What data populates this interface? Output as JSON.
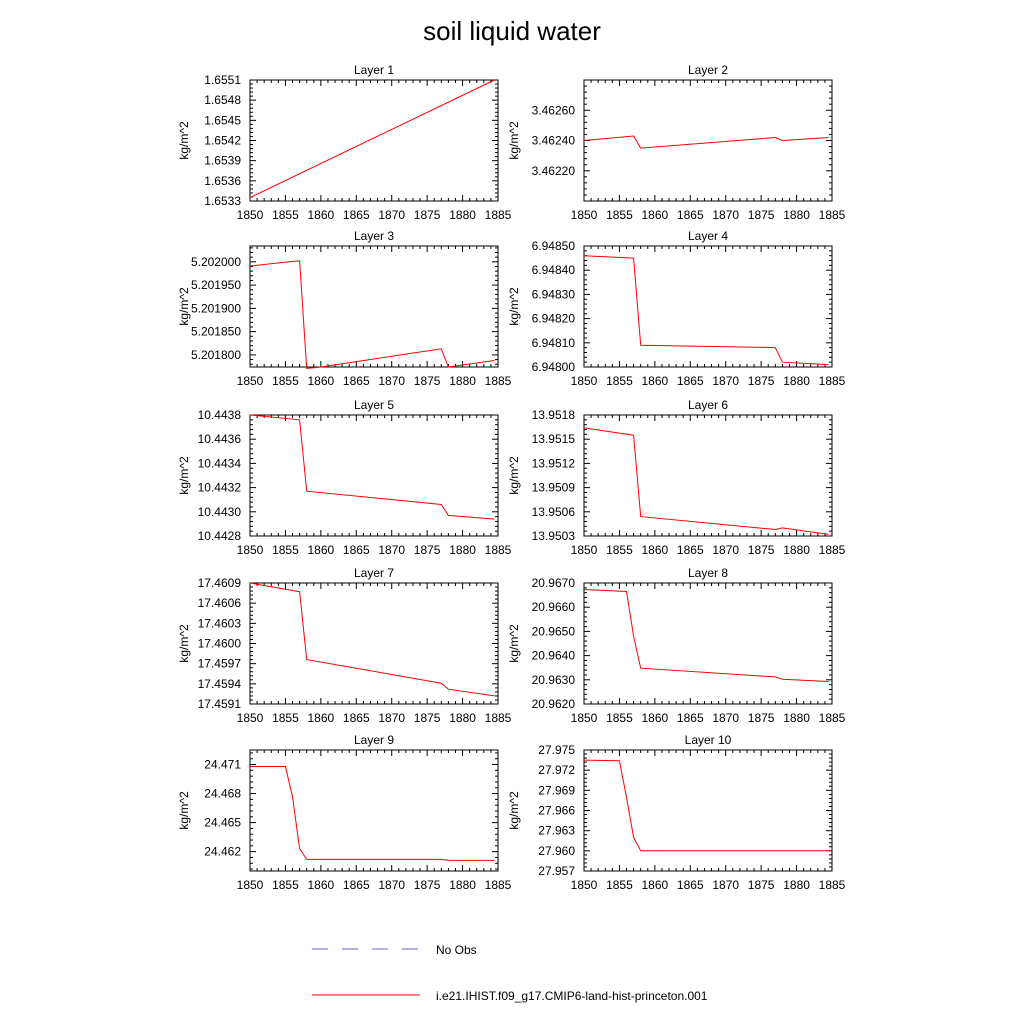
{
  "title": "soil liquid water",
  "colors": {
    "model": "#ff0000",
    "obs": "#6666cc",
    "axis": "#000000"
  },
  "legend": {
    "obs_label": "No Obs",
    "model_label": "i.e21.IHIST.f09_g17.CMIP6-land-hist-princeton.001"
  },
  "chart_data": [
    {
      "type": "line",
      "title": "Layer 1",
      "ylabel": "kg/m^2",
      "xlim": [
        1850,
        1885
      ],
      "ylim": [
        1.6533,
        1.6551
      ],
      "xticks": [
        "1850",
        "1855",
        "1860",
        "1865",
        "1870",
        "1875",
        "1880",
        "1885"
      ],
      "yticks": [
        "1.6533",
        "1.6536",
        "1.6539",
        "1.6542",
        "1.6545",
        "1.6548",
        "1.6551"
      ],
      "series": [
        {
          "x": [
            1850,
            1884.5
          ],
          "y": [
            1.65335,
            1.6551
          ]
        }
      ]
    },
    {
      "type": "line",
      "title": "Layer 2",
      "ylabel": "kg/m^2",
      "xlim": [
        1850,
        1885
      ],
      "ylim": [
        3.462,
        3.4628
      ],
      "xticks": [
        "1850",
        "1855",
        "1860",
        "1865",
        "1870",
        "1875",
        "1880",
        "1885"
      ],
      "yticks": [
        "3.46220",
        "3.46240",
        "3.46260"
      ],
      "series": [
        {
          "x": [
            1850,
            1857,
            1858,
            1877,
            1878,
            1884.5
          ],
          "y": [
            3.4624,
            3.46243,
            3.46235,
            3.46242,
            3.4624,
            3.46242
          ]
        }
      ]
    },
    {
      "type": "line",
      "title": "Layer 3",
      "ylabel": "kg/m^2",
      "xlim": [
        1850,
        1885
      ],
      "ylim": [
        5.201774,
        5.202034
      ],
      "xticks": [
        "1850",
        "1855",
        "1860",
        "1865",
        "1870",
        "1875",
        "1880",
        "1885"
      ],
      "yticks": [
        "5.201800",
        "5.201850",
        "5.201900",
        "5.201950",
        "5.202000"
      ],
      "series": [
        {
          "x": [
            1850,
            1856,
            1857,
            1858,
            1860,
            1873,
            1877,
            1878,
            1884.5
          ],
          "y": [
            5.201991,
            5.202001,
            5.202002,
            5.201771,
            5.201774,
            5.201804,
            5.201813,
            5.201774,
            5.201788
          ]
        }
      ]
    },
    {
      "type": "line",
      "title": "Layer 4",
      "ylabel": "kg/m^2",
      "xlim": [
        1850,
        1885
      ],
      "ylim": [
        6.948,
        6.9485
      ],
      "xticks": [
        "1850",
        "1855",
        "1860",
        "1865",
        "1870",
        "1875",
        "1880",
        "1885"
      ],
      "yticks": [
        "6.94800",
        "6.94810",
        "6.94820",
        "6.94830",
        "6.94840",
        "6.94850"
      ],
      "series": [
        {
          "x": [
            1850,
            1857,
            1858,
            1877,
            1878,
            1884.5
          ],
          "y": [
            6.94846,
            6.94845,
            6.94809,
            6.94808,
            6.94802,
            6.94801
          ]
        }
      ]
    },
    {
      "type": "line",
      "title": "Layer 5",
      "ylabel": "kg/m^2",
      "xlim": [
        1850,
        1885
      ],
      "ylim": [
        10.4428,
        10.4438
      ],
      "xticks": [
        "1850",
        "1855",
        "1860",
        "1865",
        "1870",
        "1875",
        "1880",
        "1885"
      ],
      "yticks": [
        "10.4428",
        "10.4430",
        "10.4432",
        "10.4434",
        "10.4436",
        "10.4438"
      ],
      "series": [
        {
          "x": [
            1850,
            1857,
            1858,
            1877,
            1878,
            1884.5
          ],
          "y": [
            10.4438,
            10.44376,
            10.44317,
            10.44306,
            10.44297,
            10.44294
          ]
        }
      ]
    },
    {
      "type": "line",
      "title": "Layer 6",
      "ylabel": "kg/m^2",
      "xlim": [
        1850,
        1885
      ],
      "ylim": [
        13.9503,
        13.9518
      ],
      "xticks": [
        "1850",
        "1855",
        "1860",
        "1865",
        "1870",
        "1875",
        "1880",
        "1885"
      ],
      "yticks": [
        "13.9503",
        "13.9506",
        "13.9509",
        "13.9512",
        "13.9515",
        "13.9518"
      ],
      "series": [
        {
          "x": [
            1850,
            1857,
            1858,
            1877,
            1878,
            1884.5
          ],
          "y": [
            13.95164,
            13.95155,
            13.95054,
            13.95038,
            13.9504,
            13.95032
          ]
        }
      ]
    },
    {
      "type": "line",
      "title": "Layer 7",
      "ylabel": "kg/m^2",
      "xlim": [
        1850,
        1885
      ],
      "ylim": [
        17.4591,
        17.4609
      ],
      "xticks": [
        "1850",
        "1855",
        "1860",
        "1865",
        "1870",
        "1875",
        "1880",
        "1885"
      ],
      "yticks": [
        "17.4591",
        "17.4594",
        "17.4597",
        "17.4600",
        "17.4603",
        "17.4606",
        "17.4609"
      ],
      "series": [
        {
          "x": [
            1850,
            1857,
            1858,
            1877,
            1878,
            1884.5
          ],
          "y": [
            17.4609,
            17.46077,
            17.45976,
            17.45941,
            17.45932,
            17.45922
          ]
        }
      ]
    },
    {
      "type": "line",
      "title": "Layer 8",
      "ylabel": "kg/m^2",
      "xlim": [
        1850,
        1885
      ],
      "ylim": [
        20.962,
        20.967
      ],
      "xticks": [
        "1850",
        "1855",
        "1860",
        "1865",
        "1870",
        "1875",
        "1880",
        "1885"
      ],
      "yticks": [
        "20.9620",
        "20.9630",
        "20.9640",
        "20.9650",
        "20.9660",
        "20.9670"
      ],
      "series": [
        {
          "x": [
            1850,
            1856,
            1857,
            1858,
            1877,
            1878,
            1884.5
          ],
          "y": [
            20.96673,
            20.96665,
            20.9648,
            20.96348,
            20.96312,
            20.96302,
            20.96293
          ]
        }
      ]
    },
    {
      "type": "line",
      "title": "Layer 9",
      "ylabel": "kg/m^2",
      "xlim": [
        1850,
        1885
      ],
      "ylim": [
        24.46,
        24.4725
      ],
      "xticks": [
        "1850",
        "1855",
        "1860",
        "1865",
        "1870",
        "1875",
        "1880",
        "1885"
      ],
      "yticks": [
        "24.462",
        "24.465",
        "24.468",
        "24.471"
      ],
      "series": [
        {
          "x": [
            1850,
            1855,
            1856,
            1857,
            1858,
            1877,
            1878,
            1884.5
          ],
          "y": [
            24.4708,
            24.4708,
            24.4677,
            24.4623,
            24.4612,
            24.4612,
            24.4611,
            24.4611
          ]
        }
      ]
    },
    {
      "type": "line",
      "title": "Layer 10",
      "ylabel": "kg/m^2",
      "xlim": [
        1850,
        1885
      ],
      "ylim": [
        27.957,
        27.975
      ],
      "xticks": [
        "1850",
        "1855",
        "1860",
        "1865",
        "1870",
        "1875",
        "1880",
        "1885"
      ],
      "yticks": [
        "27.957",
        "27.960",
        "27.963",
        "27.966",
        "27.969",
        "27.972",
        "27.975"
      ],
      "series": [
        {
          "x": [
            1850,
            1855,
            1856,
            1857,
            1858,
            1884.5
          ],
          "y": [
            27.9735,
            27.9734,
            27.968,
            27.962,
            27.96,
            27.96
          ]
        }
      ]
    }
  ]
}
